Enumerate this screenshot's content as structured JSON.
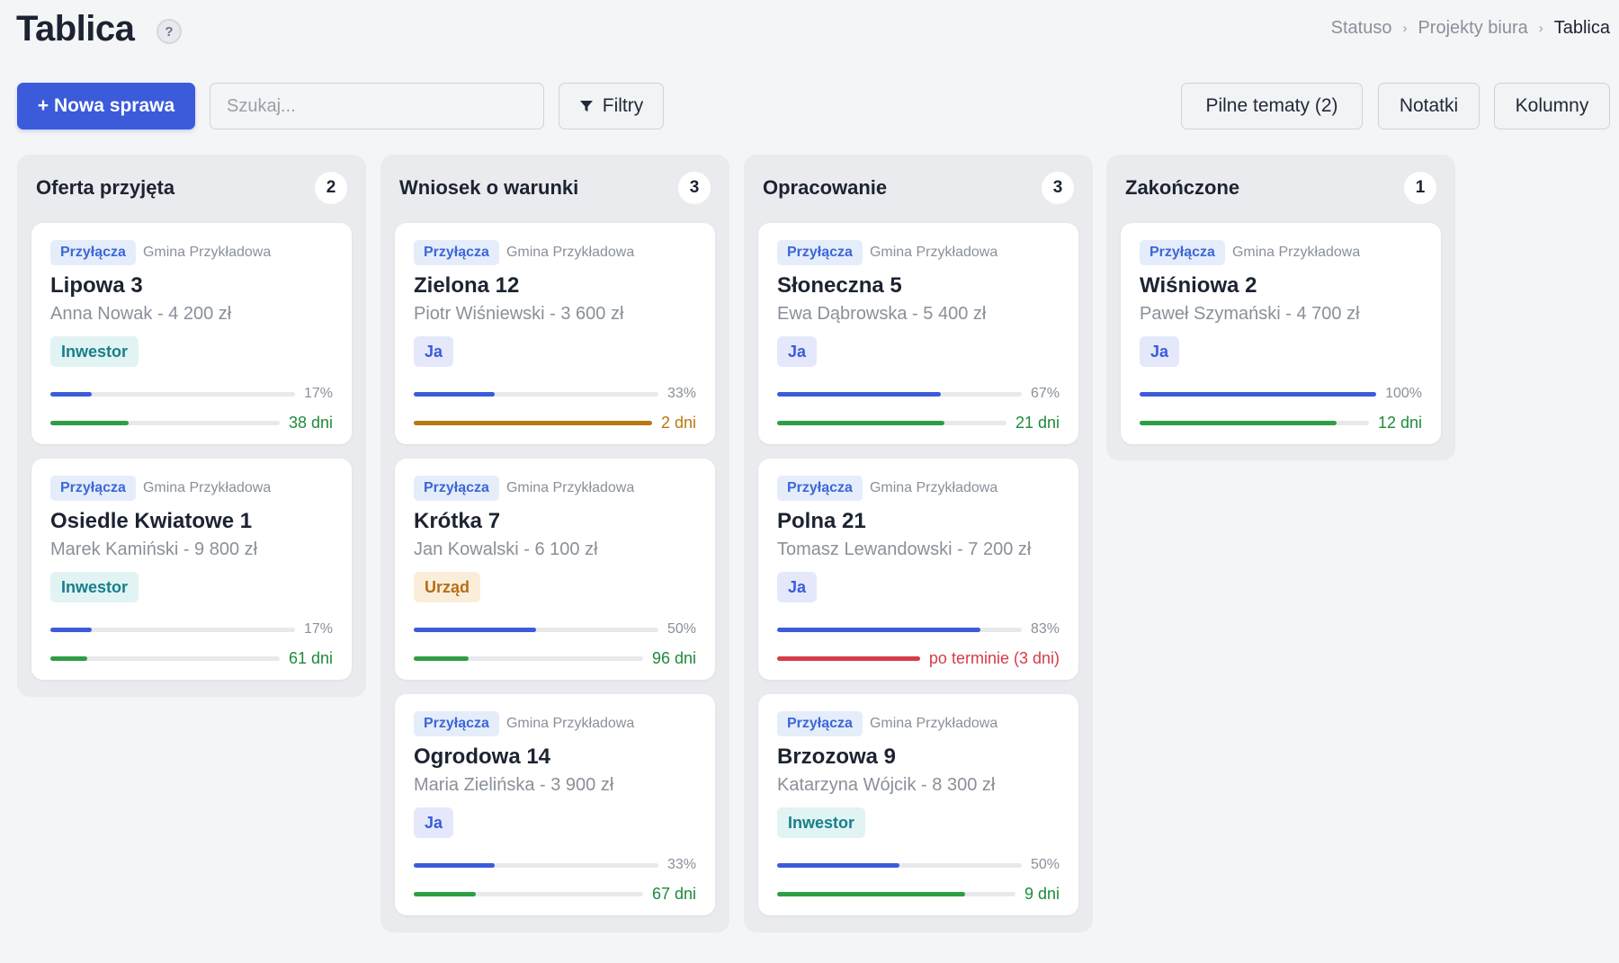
{
  "header": {
    "title": "Tablica",
    "help_icon": "?",
    "breadcrumb": [
      "Statuso",
      "Projekty biura",
      "Tablica"
    ],
    "breadcrumb_separator": "›"
  },
  "toolbar": {
    "new_case_label": "+ Nowa sprawa",
    "search_placeholder": "Szukaj...",
    "filters_label": "Filtry",
    "urgent_label": "Pilne tematy (2)",
    "notes_label": "Notatki",
    "columns_label": "Kolumny"
  },
  "colors": {
    "accent": "#3b5bdb",
    "progress": "#3b5bdb",
    "ok": "#2e9e44",
    "ok_text": "#1f8a3a",
    "warning": "#b8780f",
    "overdue": "#d63b4a"
  },
  "columns": [
    {
      "title": "Oferta przyjęta",
      "count": "2",
      "cards": [
        {
          "type": "Przyłącza",
          "municipality": "Gmina Przykładowa",
          "title": "Lipowa 3",
          "subtitle": "Anna Nowak - 4 200 zł",
          "badge": "Inwestor",
          "badge_kind": "inwestor",
          "progress": 0.17,
          "progress_label": "17%",
          "days_fill": 0.34,
          "days_label": "38 dni",
          "days_status": "ok"
        },
        {
          "type": "Przyłącza",
          "municipality": "Gmina Przykładowa",
          "title": "Osiedle Kwiatowe 1",
          "subtitle": "Marek Kamiński - 9 800 zł",
          "badge": "Inwestor",
          "badge_kind": "inwestor",
          "progress": 0.17,
          "progress_label": "17%",
          "days_fill": 0.16,
          "days_label": "61 dni",
          "days_status": "ok"
        }
      ]
    },
    {
      "title": "Wniosek o warunki",
      "count": "3",
      "cards": [
        {
          "type": "Przyłącza",
          "municipality": "Gmina Przykładowa",
          "title": "Zielona 12",
          "subtitle": "Piotr Wiśniewski - 3 600 zł",
          "badge": "Ja",
          "badge_kind": "ja",
          "progress": 0.33,
          "progress_label": "33%",
          "days_fill": 1.0,
          "days_label": "2 dni",
          "days_status": "warning"
        },
        {
          "type": "Przyłącza",
          "municipality": "Gmina Przykładowa",
          "title": "Krótka 7",
          "subtitle": "Jan Kowalski - 6 100 zł",
          "badge": "Urząd",
          "badge_kind": "urzad",
          "progress": 0.5,
          "progress_label": "50%",
          "days_fill": 0.24,
          "days_label": "96 dni",
          "days_status": "ok"
        },
        {
          "type": "Przyłącza",
          "municipality": "Gmina Przykładowa",
          "title": "Ogrodowa 14",
          "subtitle": "Maria Zielińska - 3 900 zł",
          "badge": "Ja",
          "badge_kind": "ja",
          "progress": 0.33,
          "progress_label": "33%",
          "days_fill": 0.27,
          "days_label": "67 dni",
          "days_status": "ok"
        }
      ]
    },
    {
      "title": "Opracowanie",
      "count": "3",
      "cards": [
        {
          "type": "Przyłącza",
          "municipality": "Gmina Przykładowa",
          "title": "Słoneczna 5",
          "subtitle": "Ewa Dąbrowska - 5 400 zł",
          "badge": "Ja",
          "badge_kind": "ja",
          "progress": 0.67,
          "progress_label": "67%",
          "days_fill": 0.73,
          "days_label": "21 dni",
          "days_status": "ok"
        },
        {
          "type": "Przyłącza",
          "municipality": "Gmina Przykładowa",
          "title": "Polna 21",
          "subtitle": "Tomasz Lewandowski - 7 200 zł",
          "badge": "Ja",
          "badge_kind": "ja",
          "progress": 0.83,
          "progress_label": "83%",
          "days_fill": 1.0,
          "days_label": "po terminie (3 dni)",
          "days_status": "overdue"
        },
        {
          "type": "Przyłącza",
          "municipality": "Gmina Przykładowa",
          "title": "Brzozowa 9",
          "subtitle": "Katarzyna Wójcik - 8 300 zł",
          "badge": "Inwestor",
          "badge_kind": "inwestor",
          "progress": 0.5,
          "progress_label": "50%",
          "days_fill": 0.79,
          "days_label": "9 dni",
          "days_status": "ok"
        }
      ]
    },
    {
      "title": "Zakończone",
      "count": "1",
      "cards": [
        {
          "type": "Przyłącza",
          "municipality": "Gmina Przykładowa",
          "title": "Wiśniowa 2",
          "subtitle": "Paweł Szymański - 4 700 zł",
          "badge": "Ja",
          "badge_kind": "ja",
          "progress": 1.0,
          "progress_label": "100%",
          "days_fill": 0.86,
          "days_label": "12 dni",
          "days_status": "ok"
        }
      ]
    }
  ]
}
